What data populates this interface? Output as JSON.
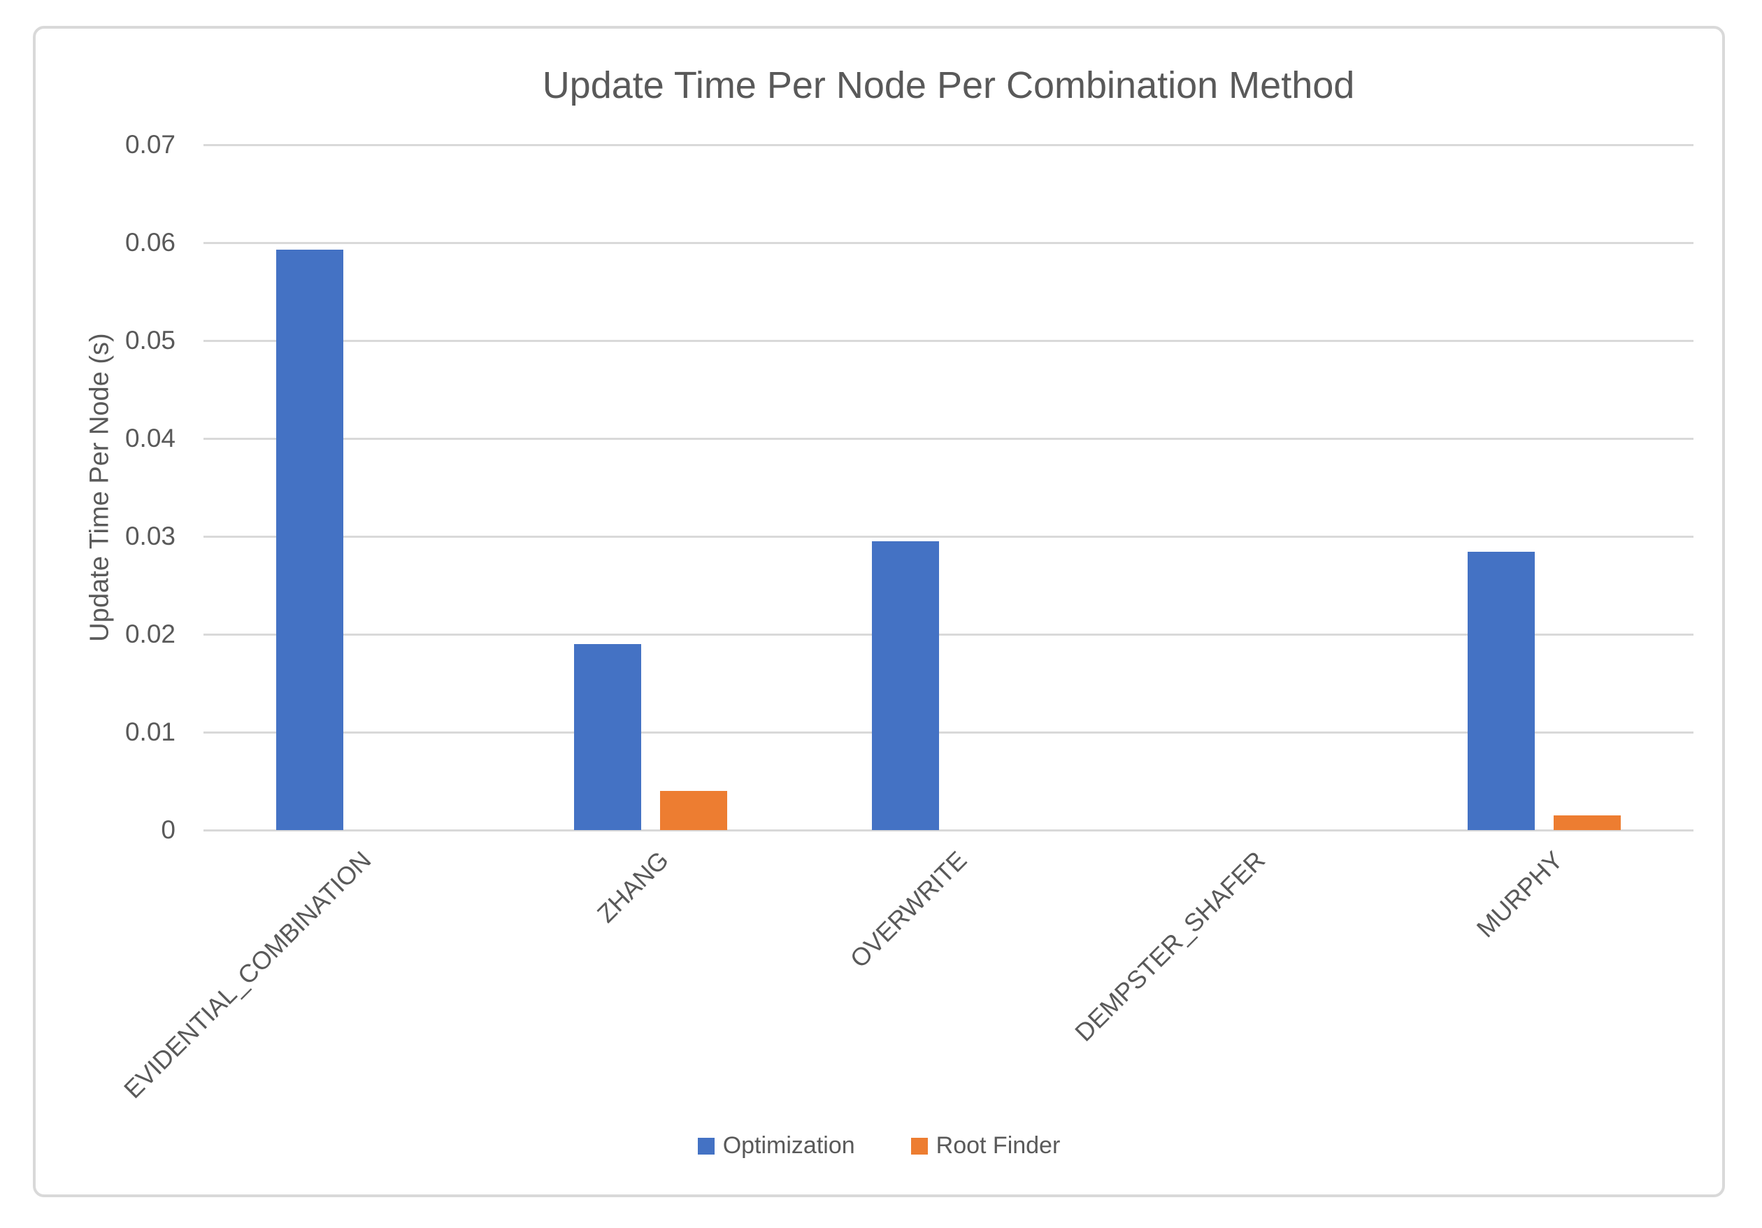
{
  "frame": {
    "border_color": "#D9D9D9",
    "background": "#FFFFFF"
  },
  "chart_data": {
    "type": "bar",
    "title": "Update Time Per Node Per Combination Method",
    "xlabel": "",
    "ylabel": "Update Time Per Node (s)",
    "ylim": [
      0,
      0.07
    ],
    "y_ticks": [
      "0",
      "0.01",
      "0.02",
      "0.03",
      "0.04",
      "0.05",
      "0.06",
      "0.07"
    ],
    "grid": true,
    "legend_position": "bottom",
    "text_color": "#595959",
    "gridline_color": "#D9D9D9",
    "categories": [
      "EVIDENTIAL_COMBINATION",
      "ZHANG",
      "OVERWRITE",
      "DEMPSTER_SHAFER",
      "MURPHY"
    ],
    "series": [
      {
        "name": "Optimization",
        "color": "#4472C4",
        "values": [
          0.0593,
          0.019,
          0.0295,
          0,
          0.0284
        ]
      },
      {
        "name": "Root Finder",
        "color": "#ED7D31",
        "values": [
          0,
          0.004,
          0,
          0,
          0.0015
        ]
      }
    ]
  }
}
